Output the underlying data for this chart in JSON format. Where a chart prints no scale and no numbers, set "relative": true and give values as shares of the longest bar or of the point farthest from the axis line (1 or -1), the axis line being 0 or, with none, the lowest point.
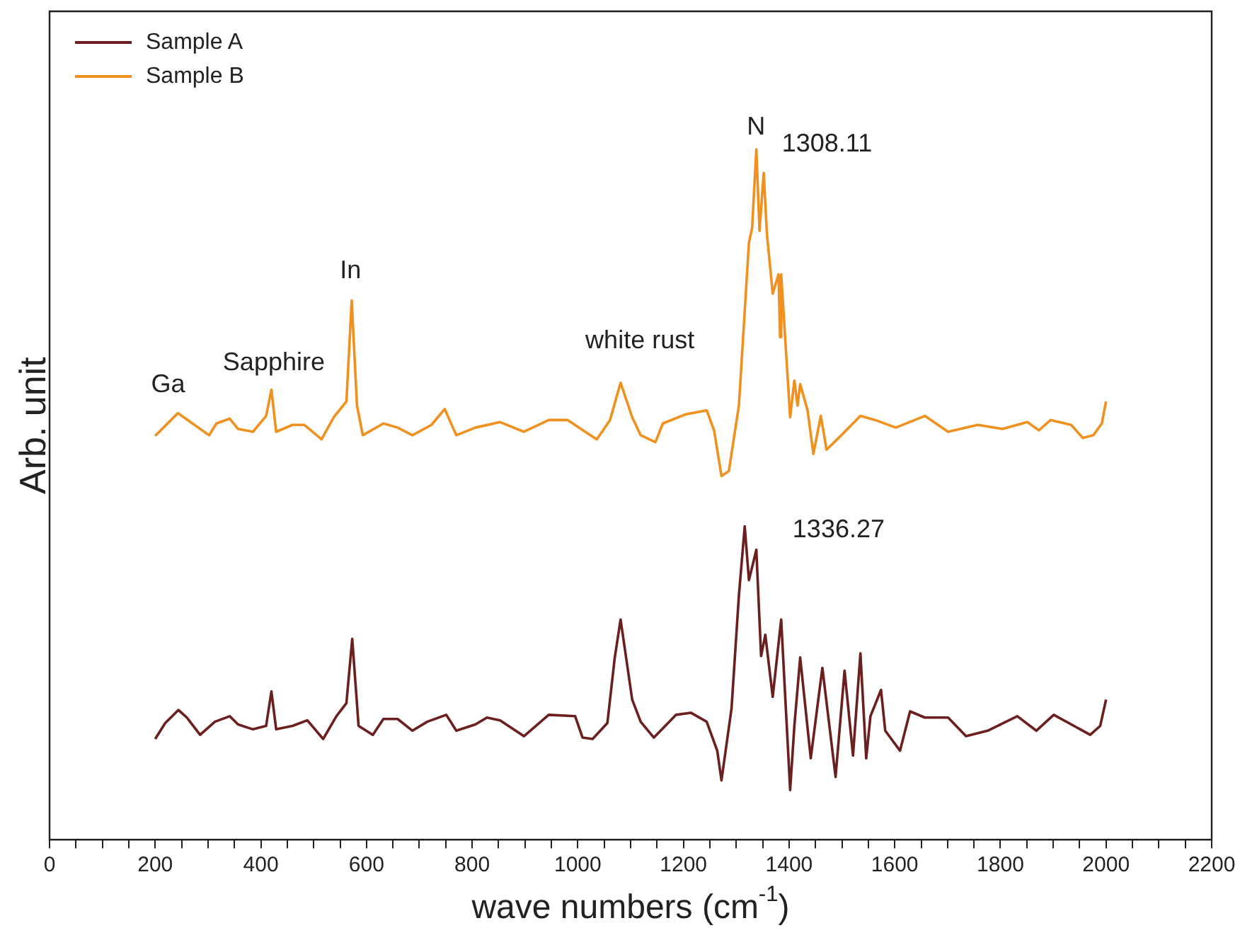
{
  "chart_data": {
    "type": "line",
    "relative": true,
    "xlabel": "wave numbers (cm$^{-1}$)",
    "ylabel": "Arb. unit",
    "legend": "top left",
    "grid": false,
    "marker": "none",
    "line_style": "solid",
    "xlim": [
      0,
      2200
    ],
    "xticks": [
      0,
      {
        "value": 50,
        "label": null
      },
      {
        "value": 100,
        "label": null
      },
      {
        "value": 150,
        "label": null
      },
      200,
      {
        "value": 250,
        "label": null
      },
      {
        "value": 300,
        "label": null
      },
      {
        "value": 350,
        "label": null
      },
      400,
      {
        "value": 450,
        "label": null
      },
      {
        "value": 500,
        "label": null
      },
      {
        "value": 550,
        "label": null
      },
      600,
      {
        "value": 650,
        "label": null
      },
      {
        "value": 700,
        "label": null
      },
      {
        "value": 750,
        "label": null
      },
      800,
      {
        "value": 850,
        "label": null
      },
      {
        "value": 900,
        "label": null
      },
      {
        "value": 950,
        "label": null
      },
      1000,
      {
        "value": 1050,
        "label": null
      },
      {
        "value": 1100,
        "label": null
      },
      {
        "value": 1150,
        "label": null
      },
      1200,
      {
        "value": 1250,
        "label": null
      },
      {
        "value": 1300,
        "label": null
      },
      {
        "value": 1350,
        "label": null
      },
      1400,
      {
        "value": 1450,
        "label": null
      },
      {
        "value": 1500,
        "label": null
      },
      {
        "value": 1550,
        "label": null
      },
      1600,
      {
        "value": 1650,
        "label": null
      },
      {
        "value": 1700,
        "label": null
      },
      {
        "value": 1750,
        "label": null
      },
      1800,
      {
        "value": 1850,
        "label": null
      },
      {
        "value": 1900,
        "label": null
      },
      {
        "value": 1950,
        "label": null
      },
      2000,
      {
        "value": 2050,
        "label": null
      },
      {
        "value": 2100,
        "label": null
      },
      {
        "value": 2150,
        "label": null
      },
      2200
    ],
    "series": [
      {
        "name": "Sample A",
        "color": "#6b1f1f",
        "x": [
          200,
          219,
          244,
          260,
          285,
          313,
          341,
          357,
          385,
          410,
          420,
          429,
          460,
          488,
          518,
          543,
          562,
          573,
          585,
          612,
          632,
          659,
          687,
          715,
          751,
          770,
          806,
          828,
          853,
          898,
          945,
          995,
          1009,
          1028,
          1056,
          1070,
          1081,
          1103,
          1119,
          1144,
          1186,
          1214,
          1244,
          1264,
          1272,
          1291,
          1305,
          1316,
          1324,
          1338,
          1347,
          1355,
          1369,
          1385,
          1402,
          1410,
          1421,
          1441,
          1463,
          1488,
          1505,
          1521,
          1535,
          1546,
          1554,
          1574,
          1582,
          1610,
          1629,
          1657,
          1701,
          1735,
          1776,
          1832,
          1868,
          1901,
          1970,
          1989,
          2000
        ],
        "values": [
          0.146,
          0.169,
          0.188,
          0.177,
          0.152,
          0.171,
          0.179,
          0.167,
          0.16,
          0.165,
          0.215,
          0.16,
          0.165,
          0.173,
          0.146,
          0.179,
          0.198,
          0.291,
          0.165,
          0.152,
          0.175,
          0.175,
          0.158,
          0.171,
          0.181,
          0.158,
          0.167,
          0.177,
          0.173,
          0.15,
          0.181,
          0.179,
          0.148,
          0.146,
          0.169,
          0.264,
          0.319,
          0.203,
          0.171,
          0.148,
          0.181,
          0.184,
          0.171,
          0.129,
          0.086,
          0.19,
          0.354,
          0.454,
          0.376,
          0.42,
          0.266,
          0.297,
          0.207,
          0.319,
          0.072,
          0.165,
          0.264,
          0.118,
          0.249,
          0.091,
          0.245,
          0.122,
          0.27,
          0.118,
          0.179,
          0.217,
          0.158,
          0.129,
          0.186,
          0.177,
          0.177,
          0.15,
          0.158,
          0.179,
          0.158,
          0.181,
          0.152,
          0.165,
          0.203
        ]
      },
      {
        "name": "Sample B",
        "color": "#f0901e",
        "x": [
          200,
          243,
          302,
          316,
          341,
          357,
          385,
          410,
          420,
          429,
          460,
          482,
          515,
          538,
          562,
          572,
          582,
          593,
          632,
          659,
          687,
          723,
          748,
          770,
          806,
          853,
          898,
          945,
          981,
          1014,
          1036,
          1061,
          1081,
          1103,
          1119,
          1147,
          1161,
          1203,
          1244,
          1258,
          1272,
          1286,
          1305,
          1324,
          1330,
          1338,
          1344,
          1352,
          1358,
          1369,
          1380,
          1383,
          1385,
          1402,
          1410,
          1416,
          1421,
          1435,
          1446,
          1460,
          1471,
          1499,
          1535,
          1563,
          1602,
          1657,
          1701,
          1757,
          1804,
          1851,
          1873,
          1895,
          1934,
          1956,
          1976,
          1992,
          2000
        ],
        "values": [
          0.585,
          0.618,
          0.586,
          0.603,
          0.61,
          0.595,
          0.591,
          0.614,
          0.652,
          0.591,
          0.601,
          0.601,
          0.58,
          0.612,
          0.635,
          0.781,
          0.629,
          0.586,
          0.603,
          0.597,
          0.586,
          0.601,
          0.624,
          0.586,
          0.597,
          0.605,
          0.591,
          0.608,
          0.608,
          0.591,
          0.58,
          0.608,
          0.662,
          0.612,
          0.586,
          0.576,
          0.603,
          0.616,
          0.622,
          0.593,
          0.527,
          0.534,
          0.629,
          0.865,
          0.886,
          1,
          0.882,
          0.966,
          0.878,
          0.791,
          0.819,
          0.728,
          0.819,
          0.612,
          0.665,
          0.629,
          0.66,
          0.622,
          0.559,
          0.614,
          0.565,
          0.586,
          0.614,
          0.608,
          0.597,
          0.614,
          0.591,
          0.601,
          0.595,
          0.605,
          0.593,
          0.608,
          0.601,
          0.582,
          0.586,
          0.603,
          0.635
        ]
      }
    ],
    "annotations": [
      "Ga",
      "Sapphire",
      "In",
      "white rust",
      "N",
      "1308.11",
      "1336.27"
    ]
  }
}
